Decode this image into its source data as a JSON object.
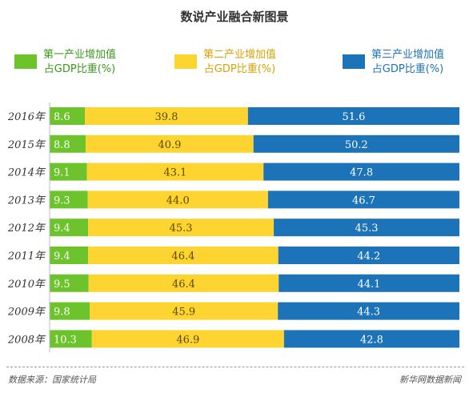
{
  "title": "数说产业融合新图景",
  "legend": [
    {
      "line1": "第一产业增加值",
      "line2": "占GDP比重(%)",
      "color": "#6cc32c",
      "text_color": "#3a9a1a"
    },
    {
      "line1": "第二产业增加值",
      "line2": "占GDP比重(%)",
      "color": "#fed430",
      "text_color": "#d9a200"
    },
    {
      "line1": "第三产业增加值",
      "line2": "占GDP比重(%)",
      "color": "#1c73b8",
      "text_color": "#1c73b8"
    }
  ],
  "chart_data": {
    "type": "bar",
    "orientation": "horizontal",
    "stacked": true,
    "title": "数说产业融合新图景",
    "categories": [
      "2016年",
      "2015年",
      "2014年",
      "2013年",
      "2012年",
      "2011年",
      "2010年",
      "2009年",
      "2008年"
    ],
    "series": [
      {
        "name": "第一产业增加值占GDP比重(%)",
        "color": "#6cc32c",
        "label_color": "#ffffff",
        "values": [
          8.6,
          8.8,
          9.1,
          9.3,
          9.4,
          9.4,
          9.5,
          9.8,
          10.3
        ]
      },
      {
        "name": "第二产业增加值占GDP比重(%)",
        "color": "#fed430",
        "label_color": "#5a4a00",
        "values": [
          39.8,
          40.9,
          43.1,
          44.0,
          45.3,
          46.4,
          46.4,
          45.9,
          46.9
        ]
      },
      {
        "name": "第三产业增加值占GDP比重(%)",
        "color": "#1c73b8",
        "label_color": "#ffffff",
        "values": [
          51.6,
          50.2,
          47.8,
          46.7,
          45.3,
          44.2,
          44.1,
          44.3,
          42.8
        ]
      }
    ],
    "value_labels": [
      [
        "8.6",
        "39.8",
        "51.6"
      ],
      [
        "8.8",
        "40.9",
        "50.2"
      ],
      [
        "9.1",
        "43.1",
        "47.8"
      ],
      [
        "9.3",
        "44.0",
        "46.7"
      ],
      [
        "9.4",
        "45.3",
        "45.3"
      ],
      [
        "9.4",
        "46.4",
        "44.2"
      ],
      [
        "9.5",
        "46.4",
        "44.1"
      ],
      [
        "9.8",
        "45.9",
        "44.3"
      ],
      [
        "10.3",
        "46.9",
        "42.8"
      ]
    ],
    "xlim": [
      0,
      100
    ],
    "grid": false,
    "legend_position": "top"
  },
  "footer": {
    "source": "数据来源：国家统计局",
    "credit": "新华网数据新闻"
  }
}
